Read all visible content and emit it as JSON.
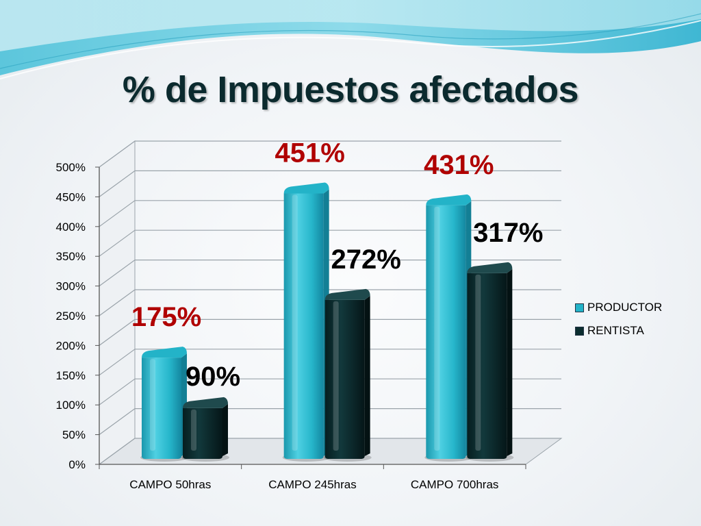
{
  "slide": {
    "title": "% de Impuestos afectados"
  },
  "colors": {
    "productor": "#23b3c8",
    "rentista": "#0b2d2f",
    "productor_label": "#b00000",
    "rentista_label": "#000000"
  },
  "chart_data": {
    "type": "bar",
    "categories": [
      "CAMPO 50hras",
      "CAMPO 245hras",
      "CAMPO 700hras"
    ],
    "series": [
      {
        "name": "PRODUCTOR",
        "values": [
          175,
          451,
          431
        ],
        "labels": [
          "175%",
          "451%",
          "431%"
        ]
      },
      {
        "name": "RENTISTA",
        "values": [
          90,
          272,
          317
        ],
        "labels": [
          "90%",
          "272%",
          "317%"
        ]
      }
    ],
    "ylim": [
      0,
      500
    ],
    "yticks": [
      "0%",
      "50%",
      "100%",
      "150%",
      "200%",
      "250%",
      "300%",
      "350%",
      "400%",
      "450%",
      "500%"
    ],
    "grid": true,
    "legend_position": "right"
  }
}
